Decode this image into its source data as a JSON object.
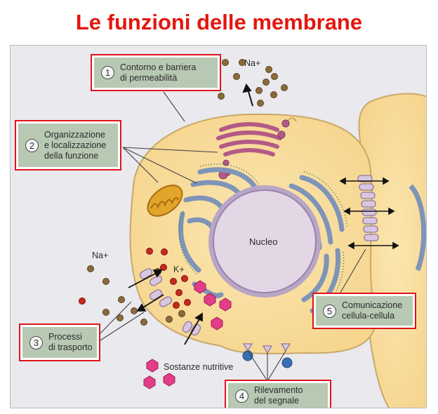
{
  "title": "Le funzioni delle membrane",
  "callouts": [
    {
      "num": "1",
      "text": "Contorno e barriera\ndi permeabilità"
    },
    {
      "num": "2",
      "text": "Organizzazione\ne localizzazione\ndella funzione"
    },
    {
      "num": "3",
      "text": "Processi\ndi trasporto"
    },
    {
      "num": "4",
      "text": "Rilevamento\ndel segnale"
    },
    {
      "num": "5",
      "text": "Comunicazione\ncellula-cellula"
    }
  ],
  "labels": {
    "na_top": "Na+",
    "nucleus": "Nucleo",
    "na_left": "Na+",
    "k": "K+",
    "nutrients": "Sostanze nutritive"
  }
}
